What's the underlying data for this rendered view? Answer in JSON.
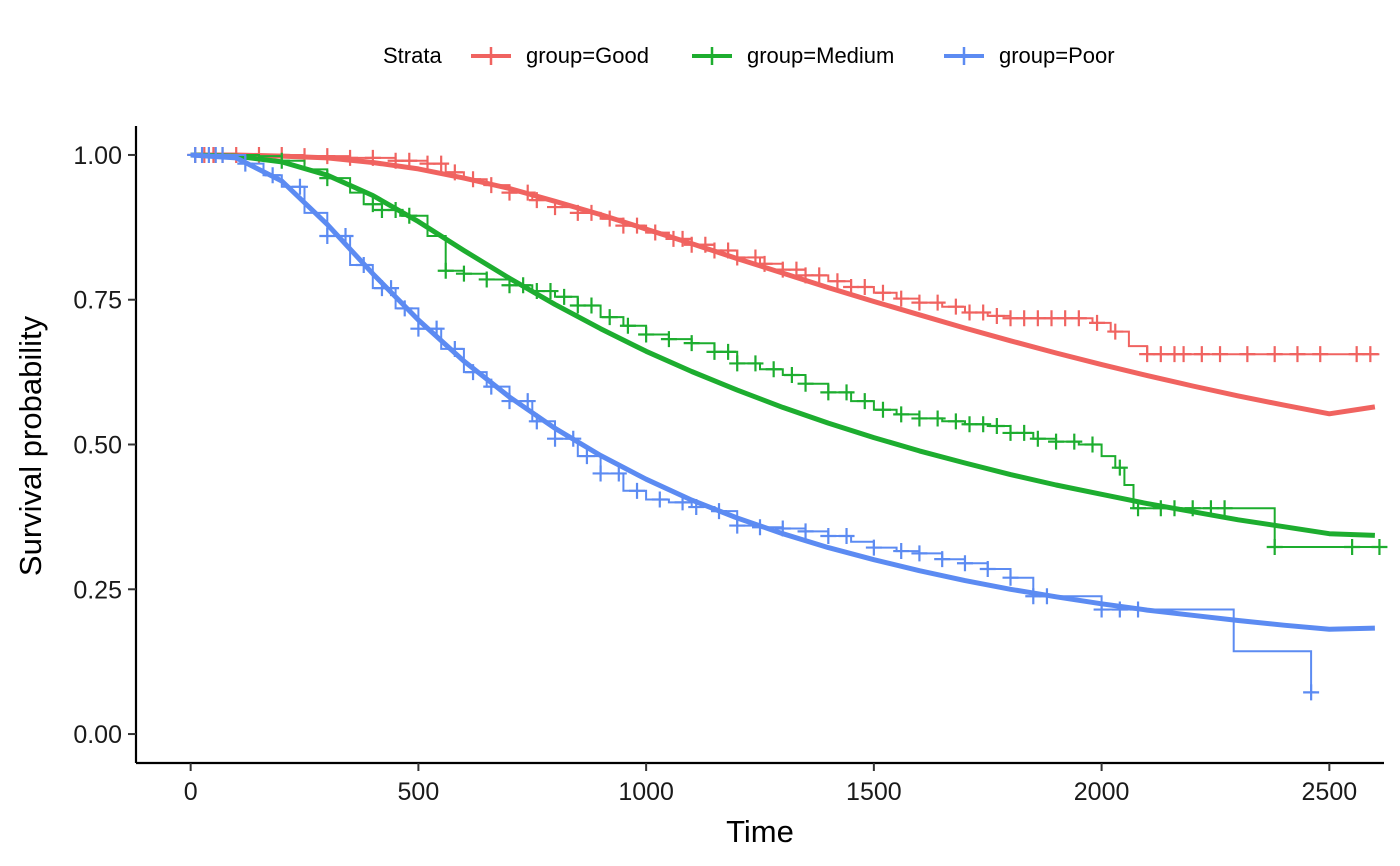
{
  "chart_data": {
    "type": "line",
    "title": "",
    "xlabel": "Time",
    "ylabel": "Survival probability",
    "xlim": [
      -120,
      2620
    ],
    "ylim": [
      -0.05,
      1.05
    ],
    "xticks": [
      0,
      500,
      1000,
      1500,
      2000,
      2500
    ],
    "xtick_labels": [
      "0",
      "500",
      "1000",
      "1500",
      "2000",
      "2500"
    ],
    "yticks": [
      0,
      0.25,
      0.5,
      0.75,
      1.0
    ],
    "ytick_labels": [
      "0.00",
      "0.25",
      "0.50",
      "0.75",
      "1.00"
    ],
    "grid": false,
    "legend": {
      "title": "Strata",
      "position": "top",
      "entries": [
        "group=Good",
        "group=Medium",
        "group=Poor"
      ]
    },
    "series": [
      {
        "name": "group=Good",
        "color": "#F06360",
        "km_steps": [
          [
            0,
            1.0
          ],
          [
            150,
            1.0
          ],
          [
            250,
            0.998
          ],
          [
            350,
            0.995
          ],
          [
            450,
            0.99
          ],
          [
            520,
            0.985
          ],
          [
            560,
            0.97
          ],
          [
            600,
            0.958
          ],
          [
            650,
            0.948
          ],
          [
            700,
            0.935
          ],
          [
            750,
            0.922
          ],
          [
            800,
            0.91
          ],
          [
            850,
            0.9
          ],
          [
            900,
            0.89
          ],
          [
            950,
            0.878
          ],
          [
            1000,
            0.866
          ],
          [
            1050,
            0.855
          ],
          [
            1100,
            0.845
          ],
          [
            1150,
            0.835
          ],
          [
            1200,
            0.823
          ],
          [
            1250,
            0.812
          ],
          [
            1300,
            0.802
          ],
          [
            1350,
            0.792
          ],
          [
            1400,
            0.782
          ],
          [
            1450,
            0.772
          ],
          [
            1500,
            0.762
          ],
          [
            1550,
            0.752
          ],
          [
            1600,
            0.745
          ],
          [
            1650,
            0.738
          ],
          [
            1700,
            0.728
          ],
          [
            1750,
            0.722
          ],
          [
            1800,
            0.718
          ],
          [
            1850,
            0.718
          ],
          [
            1950,
            0.718
          ],
          [
            1980,
            0.71
          ],
          [
            2020,
            0.695
          ],
          [
            2060,
            0.67
          ],
          [
            2100,
            0.656
          ],
          [
            2610,
            0.656
          ]
        ],
        "censor_times": [
          10,
          30,
          50,
          70,
          100,
          150,
          200,
          250,
          300,
          350,
          400,
          450,
          480,
          520,
          550,
          580,
          620,
          660,
          700,
          740,
          760,
          800,
          850,
          880,
          920,
          950,
          980,
          1020,
          1060,
          1080,
          1100,
          1130,
          1150,
          1180,
          1200,
          1240,
          1260,
          1300,
          1330,
          1350,
          1380,
          1420,
          1450,
          1480,
          1520,
          1560,
          1600,
          1640,
          1680,
          1710,
          1740,
          1770,
          1800,
          1830,
          1860,
          1890,
          1920,
          1950,
          1990,
          2030,
          2100,
          2130,
          2160,
          2180,
          2220,
          2260,
          2320,
          2380,
          2430,
          2480,
          2560,
          2590
        ],
        "fit": [
          [
            0,
            1.0
          ],
          [
            100,
            1.0
          ],
          [
            200,
            0.998
          ],
          [
            300,
            0.995
          ],
          [
            400,
            0.987
          ],
          [
            500,
            0.976
          ],
          [
            600,
            0.96
          ],
          [
            700,
            0.942
          ],
          [
            800,
            0.92
          ],
          [
            900,
            0.897
          ],
          [
            1000,
            0.872
          ],
          [
            1100,
            0.847
          ],
          [
            1200,
            0.821
          ],
          [
            1300,
            0.796
          ],
          [
            1400,
            0.771
          ],
          [
            1500,
            0.747
          ],
          [
            1600,
            0.724
          ],
          [
            1700,
            0.701
          ],
          [
            1800,
            0.679
          ],
          [
            1900,
            0.658
          ],
          [
            2000,
            0.638
          ],
          [
            2100,
            0.619
          ],
          [
            2200,
            0.601
          ],
          [
            2300,
            0.584
          ],
          [
            2400,
            0.568
          ],
          [
            2500,
            0.553
          ],
          [
            2600,
            0.565
          ]
        ]
      },
      {
        "name": "group=Medium",
        "color": "#1DAD2F",
        "km_steps": [
          [
            0,
            1.0
          ],
          [
            100,
            1.0
          ],
          [
            150,
            0.998
          ],
          [
            200,
            0.99
          ],
          [
            250,
            0.975
          ],
          [
            300,
            0.96
          ],
          [
            350,
            0.935
          ],
          [
            380,
            0.915
          ],
          [
            420,
            0.905
          ],
          [
            460,
            0.895
          ],
          [
            520,
            0.86
          ],
          [
            560,
            0.8
          ],
          [
            600,
            0.795
          ],
          [
            650,
            0.785
          ],
          [
            700,
            0.775
          ],
          [
            750,
            0.765
          ],
          [
            800,
            0.755
          ],
          [
            850,
            0.74
          ],
          [
            900,
            0.72
          ],
          [
            950,
            0.705
          ],
          [
            1000,
            0.69
          ],
          [
            1050,
            0.682
          ],
          [
            1100,
            0.675
          ],
          [
            1150,
            0.66
          ],
          [
            1200,
            0.64
          ],
          [
            1250,
            0.63
          ],
          [
            1300,
            0.62
          ],
          [
            1350,
            0.605
          ],
          [
            1400,
            0.59
          ],
          [
            1450,
            0.575
          ],
          [
            1500,
            0.56
          ],
          [
            1550,
            0.552
          ],
          [
            1600,
            0.545
          ],
          [
            1650,
            0.54
          ],
          [
            1700,
            0.535
          ],
          [
            1750,
            0.532
          ],
          [
            1800,
            0.52
          ],
          [
            1850,
            0.51
          ],
          [
            1900,
            0.505
          ],
          [
            1950,
            0.5
          ],
          [
            2000,
            0.48
          ],
          [
            2030,
            0.46
          ],
          [
            2050,
            0.43
          ],
          [
            2070,
            0.39
          ],
          [
            2150,
            0.39
          ],
          [
            2280,
            0.39
          ],
          [
            2370,
            0.39
          ],
          [
            2380,
            0.323
          ],
          [
            2610,
            0.323
          ]
        ],
        "censor_times": [
          200,
          300,
          400,
          420,
          450,
          480,
          560,
          600,
          650,
          700,
          730,
          760,
          790,
          820,
          850,
          880,
          920,
          960,
          1000,
          1050,
          1100,
          1150,
          1180,
          1200,
          1240,
          1280,
          1320,
          1350,
          1400,
          1440,
          1480,
          1520,
          1560,
          1600,
          1640,
          1680,
          1710,
          1740,
          1770,
          1800,
          1830,
          1860,
          1900,
          1940,
          1980,
          2040,
          2080,
          2130,
          2160,
          2200,
          2240,
          2270,
          2380,
          2550,
          2610
        ],
        "fit": [
          [
            0,
            1.0
          ],
          [
            100,
            0.998
          ],
          [
            200,
            0.988
          ],
          [
            300,
            0.965
          ],
          [
            400,
            0.93
          ],
          [
            500,
            0.885
          ],
          [
            600,
            0.835
          ],
          [
            700,
            0.787
          ],
          [
            800,
            0.742
          ],
          [
            900,
            0.7
          ],
          [
            1000,
            0.661
          ],
          [
            1100,
            0.626
          ],
          [
            1200,
            0.594
          ],
          [
            1300,
            0.564
          ],
          [
            1400,
            0.537
          ],
          [
            1500,
            0.512
          ],
          [
            1600,
            0.489
          ],
          [
            1700,
            0.468
          ],
          [
            1800,
            0.448
          ],
          [
            1900,
            0.43
          ],
          [
            2000,
            0.414
          ],
          [
            2100,
            0.398
          ],
          [
            2200,
            0.384
          ],
          [
            2300,
            0.37
          ],
          [
            2400,
            0.358
          ],
          [
            2500,
            0.346
          ],
          [
            2600,
            0.343
          ]
        ]
      },
      {
        "name": "group=Poor",
        "color": "#5C8BF2",
        "km_steps": [
          [
            0,
            1.0
          ],
          [
            80,
            1.0
          ],
          [
            120,
            0.985
          ],
          [
            160,
            0.965
          ],
          [
            200,
            0.945
          ],
          [
            250,
            0.9
          ],
          [
            300,
            0.86
          ],
          [
            350,
            0.81
          ],
          [
            400,
            0.77
          ],
          [
            450,
            0.735
          ],
          [
            500,
            0.7
          ],
          [
            550,
            0.665
          ],
          [
            600,
            0.625
          ],
          [
            650,
            0.6
          ],
          [
            700,
            0.575
          ],
          [
            750,
            0.54
          ],
          [
            800,
            0.51
          ],
          [
            850,
            0.48
          ],
          [
            900,
            0.45
          ],
          [
            950,
            0.42
          ],
          [
            1000,
            0.405
          ],
          [
            1050,
            0.4
          ],
          [
            1100,
            0.392
          ],
          [
            1150,
            0.385
          ],
          [
            1200,
            0.36
          ],
          [
            1250,
            0.357
          ],
          [
            1300,
            0.355
          ],
          [
            1350,
            0.35
          ],
          [
            1400,
            0.342
          ],
          [
            1450,
            0.332
          ],
          [
            1500,
            0.322
          ],
          [
            1550,
            0.316
          ],
          [
            1600,
            0.312
          ],
          [
            1650,
            0.302
          ],
          [
            1700,
            0.295
          ],
          [
            1750,
            0.285
          ],
          [
            1800,
            0.27
          ],
          [
            1850,
            0.238
          ],
          [
            1900,
            0.238
          ],
          [
            1950,
            0.238
          ],
          [
            2000,
            0.215
          ],
          [
            2100,
            0.215
          ],
          [
            2200,
            0.215
          ],
          [
            2280,
            0.215
          ],
          [
            2290,
            0.143
          ],
          [
            2400,
            0.143
          ],
          [
            2440,
            0.143
          ],
          [
            2460,
            0.072
          ],
          [
            2470,
            0.072
          ]
        ],
        "censor_times": [
          10,
          25,
          40,
          55,
          70,
          120,
          180,
          240,
          300,
          340,
          380,
          420,
          440,
          470,
          500,
          540,
          580,
          620,
          660,
          700,
          740,
          760,
          800,
          840,
          870,
          900,
          940,
          980,
          1030,
          1080,
          1110,
          1160,
          1200,
          1250,
          1300,
          1350,
          1400,
          1440,
          1500,
          1560,
          1600,
          1650,
          1700,
          1750,
          1800,
          1850,
          1880,
          2000,
          2040,
          2080,
          2460
        ],
        "fit": [
          [
            0,
            1.0
          ],
          [
            100,
            0.995
          ],
          [
            200,
            0.955
          ],
          [
            300,
            0.88
          ],
          [
            400,
            0.795
          ],
          [
            500,
            0.715
          ],
          [
            600,
            0.644
          ],
          [
            700,
            0.582
          ],
          [
            800,
            0.528
          ],
          [
            900,
            0.481
          ],
          [
            1000,
            0.44
          ],
          [
            1100,
            0.404
          ],
          [
            1200,
            0.373
          ],
          [
            1300,
            0.346
          ],
          [
            1400,
            0.322
          ],
          [
            1500,
            0.301
          ],
          [
            1600,
            0.282
          ],
          [
            1700,
            0.265
          ],
          [
            1800,
            0.25
          ],
          [
            1900,
            0.237
          ],
          [
            2000,
            0.225
          ],
          [
            2100,
            0.214
          ],
          [
            2200,
            0.205
          ],
          [
            2300,
            0.196
          ],
          [
            2400,
            0.188
          ],
          [
            2500,
            0.181
          ],
          [
            2600,
            0.183
          ]
        ]
      }
    ]
  }
}
